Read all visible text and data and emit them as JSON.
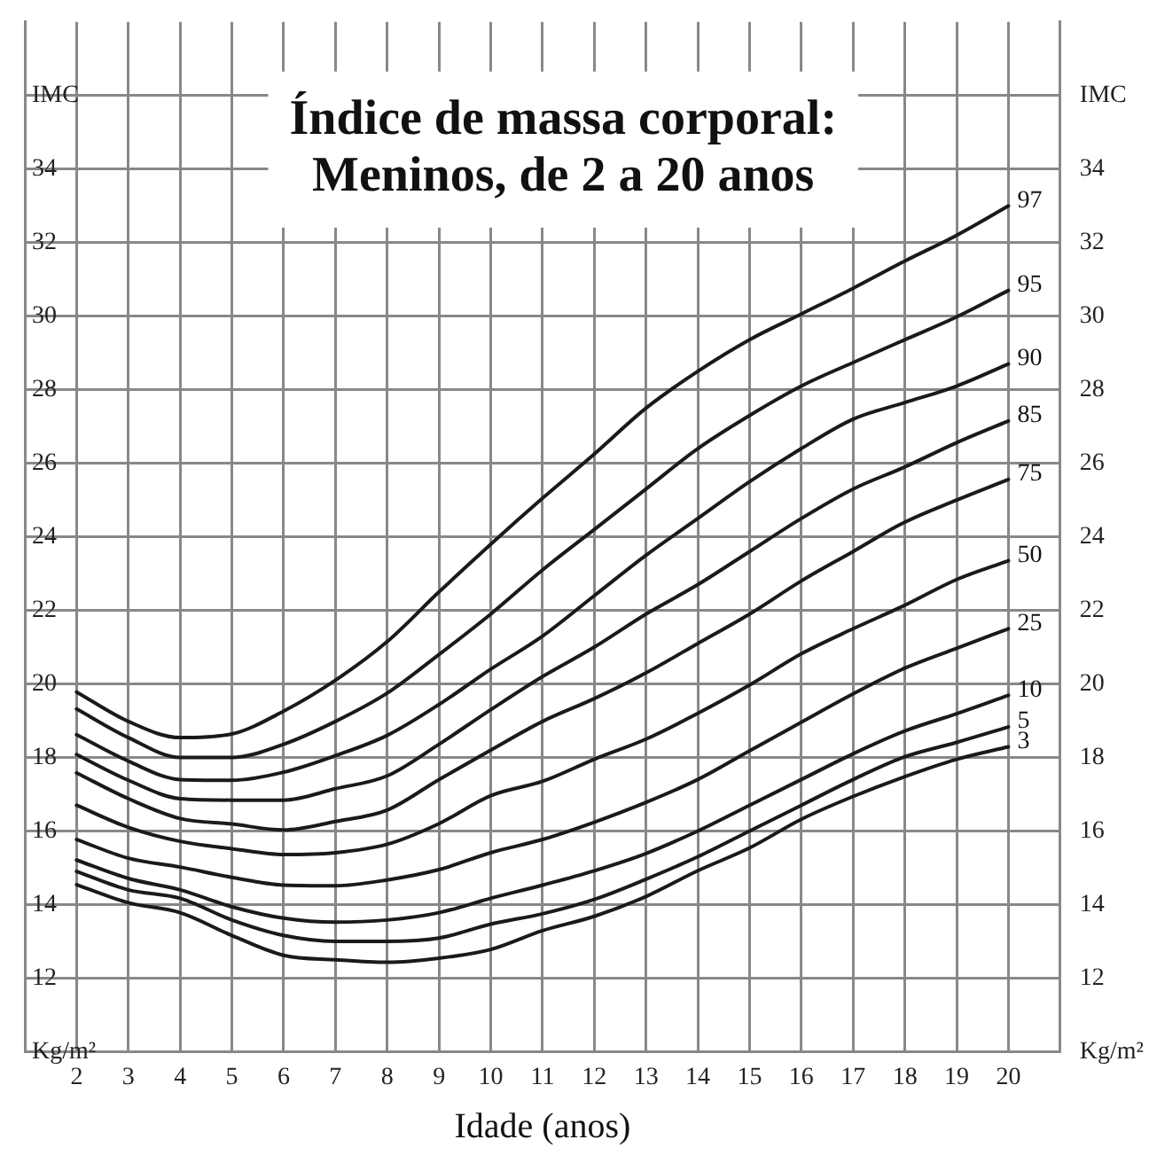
{
  "chart_data": {
    "type": "line",
    "title": "Índice de massa corporal:\nMeninos, de 2 a 20 anos",
    "xlabel": "Idade (anos)",
    "x": [
      2,
      3,
      4,
      5,
      6,
      7,
      8,
      9,
      10,
      11,
      12,
      13,
      14,
      15,
      16,
      17,
      18,
      19,
      20
    ],
    "xlim": [
      1,
      21
    ],
    "xticks": [
      2,
      3,
      4,
      5,
      6,
      7,
      8,
      9,
      10,
      11,
      12,
      13,
      14,
      15,
      16,
      17,
      18,
      19,
      20
    ],
    "ylim": [
      10,
      38
    ],
    "yticks": [
      {
        "value": 10,
        "label": "Kg/m²"
      },
      12,
      14,
      16,
      18,
      20,
      22,
      24,
      26,
      28,
      30,
      32,
      34,
      {
        "value": 36,
        "label": "IMC"
      }
    ],
    "y2lim": [
      10,
      38
    ],
    "y2ticks": [
      {
        "value": 10,
        "label": "Kg/m²"
      },
      12,
      14,
      16,
      18,
      20,
      22,
      24,
      26,
      28,
      30,
      32,
      34,
      {
        "value": 36,
        "label": "IMC"
      }
    ],
    "grid": true,
    "legend": false,
    "marker": "none",
    "line_style": "solid",
    "series": [
      {
        "name": "97",
        "color": "#1a1a1a",
        "values": [
          19.78,
          18.98,
          18.54,
          18.64,
          19.26,
          20.1,
          21.15,
          22.5,
          23.8,
          25.05,
          26.25,
          27.5,
          28.5,
          29.36,
          30.06,
          30.76,
          31.5,
          32.2,
          33.0
        ]
      },
      {
        "name": "95",
        "color": "#1a1a1a",
        "values": [
          19.32,
          18.54,
          18.0,
          18.0,
          18.36,
          18.98,
          19.75,
          20.8,
          21.9,
          23.1,
          24.2,
          25.3,
          26.4,
          27.3,
          28.1,
          28.74,
          29.36,
          29.98,
          30.7
        ]
      },
      {
        "name": "90",
        "color": "#1a1a1a",
        "values": [
          18.62,
          17.9,
          17.4,
          17.38,
          17.6,
          18.05,
          18.6,
          19.44,
          20.4,
          21.3,
          22.4,
          23.5,
          24.5,
          25.5,
          26.4,
          27.2,
          27.65,
          28.1,
          28.7
        ]
      },
      {
        "name": "85",
        "color": "#1a1a1a",
        "values": [
          18.08,
          17.38,
          16.88,
          16.84,
          16.84,
          17.15,
          17.5,
          18.36,
          19.3,
          20.2,
          21.0,
          21.9,
          22.7,
          23.6,
          24.5,
          25.3,
          25.9,
          26.56,
          27.15
        ]
      },
      {
        "name": "75",
        "color": "#1a1a1a",
        "values": [
          17.58,
          16.88,
          16.34,
          16.19,
          16.03,
          16.26,
          16.57,
          17.4,
          18.2,
          18.98,
          19.6,
          20.3,
          21.1,
          21.9,
          22.8,
          23.6,
          24.4,
          25.0,
          25.56
        ]
      },
      {
        "name": "50",
        "color": "#1a1a1a",
        "values": [
          16.7,
          16.1,
          15.72,
          15.52,
          15.36,
          15.41,
          15.64,
          16.2,
          16.96,
          17.35,
          17.95,
          18.5,
          19.2,
          19.97,
          20.82,
          21.5,
          22.14,
          22.84,
          23.35
        ]
      },
      {
        "name": "25",
        "color": "#1a1a1a",
        "values": [
          15.77,
          15.26,
          15.02,
          14.74,
          14.53,
          14.51,
          14.67,
          14.95,
          15.41,
          15.77,
          16.24,
          16.78,
          17.4,
          18.18,
          18.96,
          19.73,
          20.43,
          20.97,
          21.5
        ]
      },
      {
        "name": "10",
        "color": "#1a1a1a",
        "values": [
          15.21,
          14.71,
          14.4,
          13.94,
          13.63,
          13.52,
          13.58,
          13.78,
          14.17,
          14.53,
          14.92,
          15.39,
          16.0,
          16.7,
          17.4,
          18.1,
          18.72,
          19.19,
          19.69
        ]
      },
      {
        "name": "5",
        "color": "#1a1a1a",
        "values": [
          14.9,
          14.4,
          14.17,
          13.58,
          13.16,
          13.0,
          13.0,
          13.09,
          13.47,
          13.75,
          14.14,
          14.69,
          15.3,
          16.0,
          16.7,
          17.4,
          18.02,
          18.41,
          18.83
        ]
      },
      {
        "name": "3",
        "color": "#1a1a1a",
        "values": [
          14.54,
          14.05,
          13.78,
          13.16,
          12.62,
          12.5,
          12.43,
          12.54,
          12.78,
          13.29,
          13.68,
          14.22,
          14.92,
          15.54,
          16.32,
          16.94,
          17.48,
          17.95,
          18.29
        ]
      }
    ]
  }
}
